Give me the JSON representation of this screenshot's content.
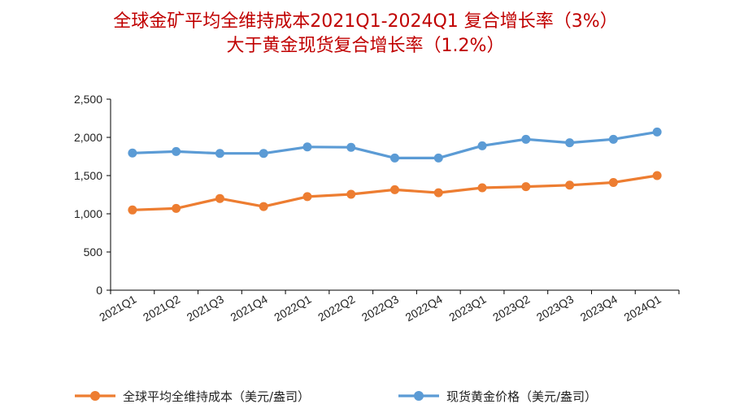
{
  "header": {
    "title_line1": "全球金矿平均全维持成本2021Q1-2024Q1 复合增长率（3%）",
    "title_line2": "大于黄金现货复合增长率（1.2%）"
  },
  "colors": {
    "title": "#c00000",
    "series_cost": "#ED7D31",
    "series_gold": "#5B9BD5",
    "axis": "#000000"
  },
  "chart_data": {
    "type": "line",
    "title": "全球金矿平均全维持成本2021Q1-2024Q1 复合增长率（3%） 大于黄金现货复合增长率（1.2%）",
    "xlabel": "",
    "ylabel": "",
    "ylim": [
      0,
      2500
    ],
    "yticks": [
      0,
      500,
      1000,
      1500,
      2000,
      2500
    ],
    "ytick_labels": [
      "0",
      "500",
      "1,000",
      "1,500",
      "2,000",
      "2,500"
    ],
    "grid": false,
    "legend_position": "bottom",
    "categories": [
      "2021Q1",
      "2021Q2",
      "2021Q3",
      "2021Q4",
      "2022Q1",
      "2022Q2",
      "2022Q3",
      "2022Q4",
      "2023Q1",
      "2023Q2",
      "2023Q3",
      "2023Q4",
      "2024Q1"
    ],
    "series": [
      {
        "name": "全球平均全维持成本（美元/盎司）",
        "color": "#ED7D31",
        "values": [
          1050,
          1070,
          1200,
          1095,
          1225,
          1255,
          1315,
          1275,
          1340,
          1355,
          1375,
          1410,
          1500
        ]
      },
      {
        "name": "现货黄金价格（美元/盎司）",
        "color": "#5B9BD5",
        "values": [
          1795,
          1815,
          1790,
          1790,
          1875,
          1870,
          1730,
          1730,
          1890,
          1975,
          1930,
          1975,
          2070
        ]
      }
    ]
  }
}
